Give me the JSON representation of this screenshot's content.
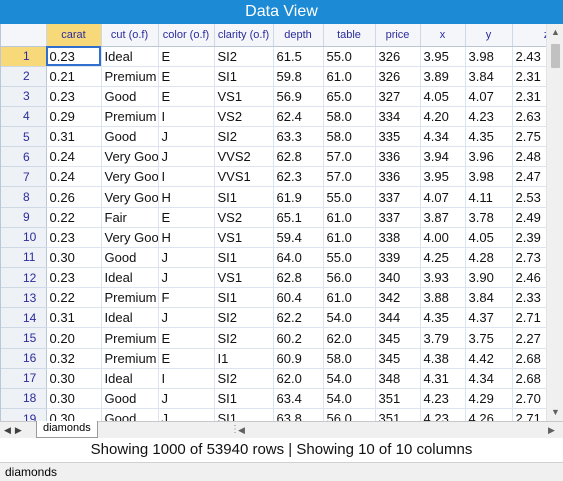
{
  "window": {
    "title": "Data View"
  },
  "columns": [
    "carat",
    "cut (o.f)",
    "color (o.f)",
    "clarity (o.f)",
    "depth",
    "table",
    "price",
    "x",
    "y",
    "z"
  ],
  "rows": [
    [
      "1",
      "0.23",
      "Ideal",
      "E",
      "SI2",
      "61.5",
      "55.0",
      "326",
      "3.95",
      "3.98",
      "2.43"
    ],
    [
      "2",
      "0.21",
      "Premium",
      "E",
      "SI1",
      "59.8",
      "61.0",
      "326",
      "3.89",
      "3.84",
      "2.31"
    ],
    [
      "3",
      "0.23",
      "Good",
      "E",
      "VS1",
      "56.9",
      "65.0",
      "327",
      "4.05",
      "4.07",
      "2.31"
    ],
    [
      "4",
      "0.29",
      "Premium",
      "I",
      "VS2",
      "62.4",
      "58.0",
      "334",
      "4.20",
      "4.23",
      "2.63"
    ],
    [
      "5",
      "0.31",
      "Good",
      "J",
      "SI2",
      "63.3",
      "58.0",
      "335",
      "4.34",
      "4.35",
      "2.75"
    ],
    [
      "6",
      "0.24",
      "Very Good",
      "J",
      "VVS2",
      "62.8",
      "57.0",
      "336",
      "3.94",
      "3.96",
      "2.48"
    ],
    [
      "7",
      "0.24",
      "Very Good",
      "I",
      "VVS1",
      "62.3",
      "57.0",
      "336",
      "3.95",
      "3.98",
      "2.47"
    ],
    [
      "8",
      "0.26",
      "Very Good",
      "H",
      "SI1",
      "61.9",
      "55.0",
      "337",
      "4.07",
      "4.11",
      "2.53"
    ],
    [
      "9",
      "0.22",
      "Fair",
      "E",
      "VS2",
      "65.1",
      "61.0",
      "337",
      "3.87",
      "3.78",
      "2.49"
    ],
    [
      "10",
      "0.23",
      "Very Good",
      "H",
      "VS1",
      "59.4",
      "61.0",
      "338",
      "4.00",
      "4.05",
      "2.39"
    ],
    [
      "11",
      "0.30",
      "Good",
      "J",
      "SI1",
      "64.0",
      "55.0",
      "339",
      "4.25",
      "4.28",
      "2.73"
    ],
    [
      "12",
      "0.23",
      "Ideal",
      "J",
      "VS1",
      "62.8",
      "56.0",
      "340",
      "3.93",
      "3.90",
      "2.46"
    ],
    [
      "13",
      "0.22",
      "Premium",
      "F",
      "SI1",
      "60.4",
      "61.0",
      "342",
      "3.88",
      "3.84",
      "2.33"
    ],
    [
      "14",
      "0.31",
      "Ideal",
      "J",
      "SI2",
      "62.2",
      "54.0",
      "344",
      "4.35",
      "4.37",
      "2.71"
    ],
    [
      "15",
      "0.20",
      "Premium",
      "E",
      "SI2",
      "60.2",
      "62.0",
      "345",
      "3.79",
      "3.75",
      "2.27"
    ],
    [
      "16",
      "0.32",
      "Premium",
      "E",
      "I1",
      "60.9",
      "58.0",
      "345",
      "4.38",
      "4.42",
      "2.68"
    ],
    [
      "17",
      "0.30",
      "Ideal",
      "I",
      "SI2",
      "62.0",
      "54.0",
      "348",
      "4.31",
      "4.34",
      "2.68"
    ],
    [
      "18",
      "0.30",
      "Good",
      "J",
      "SI1",
      "63.4",
      "54.0",
      "351",
      "4.23",
      "4.29",
      "2.70"
    ],
    [
      "19",
      "0.30",
      "Good",
      "J",
      "SI1",
      "63.8",
      "56.0",
      "351",
      "4.23",
      "4.26",
      "2.71"
    ]
  ],
  "sheet_tab": "diamonds",
  "summary": "Showing 1000 of 53940 rows | Showing 10 of 10 columns",
  "status": "diamonds",
  "icons": {
    "scroll_up": "scroll-up-arrow",
    "scroll_down": "scroll-down-arrow",
    "scroll_left": "scroll-left-arrow",
    "scroll_right": "scroll-right-arrow",
    "tab_prev": "tab-prev-arrow",
    "tab_next": "tab-next-arrow"
  },
  "colors": {
    "title_bar": "#1c8ad4",
    "active_header": "#f7d97a",
    "header_text": "#2c2c9c",
    "selection": "#2f6fcf"
  }
}
